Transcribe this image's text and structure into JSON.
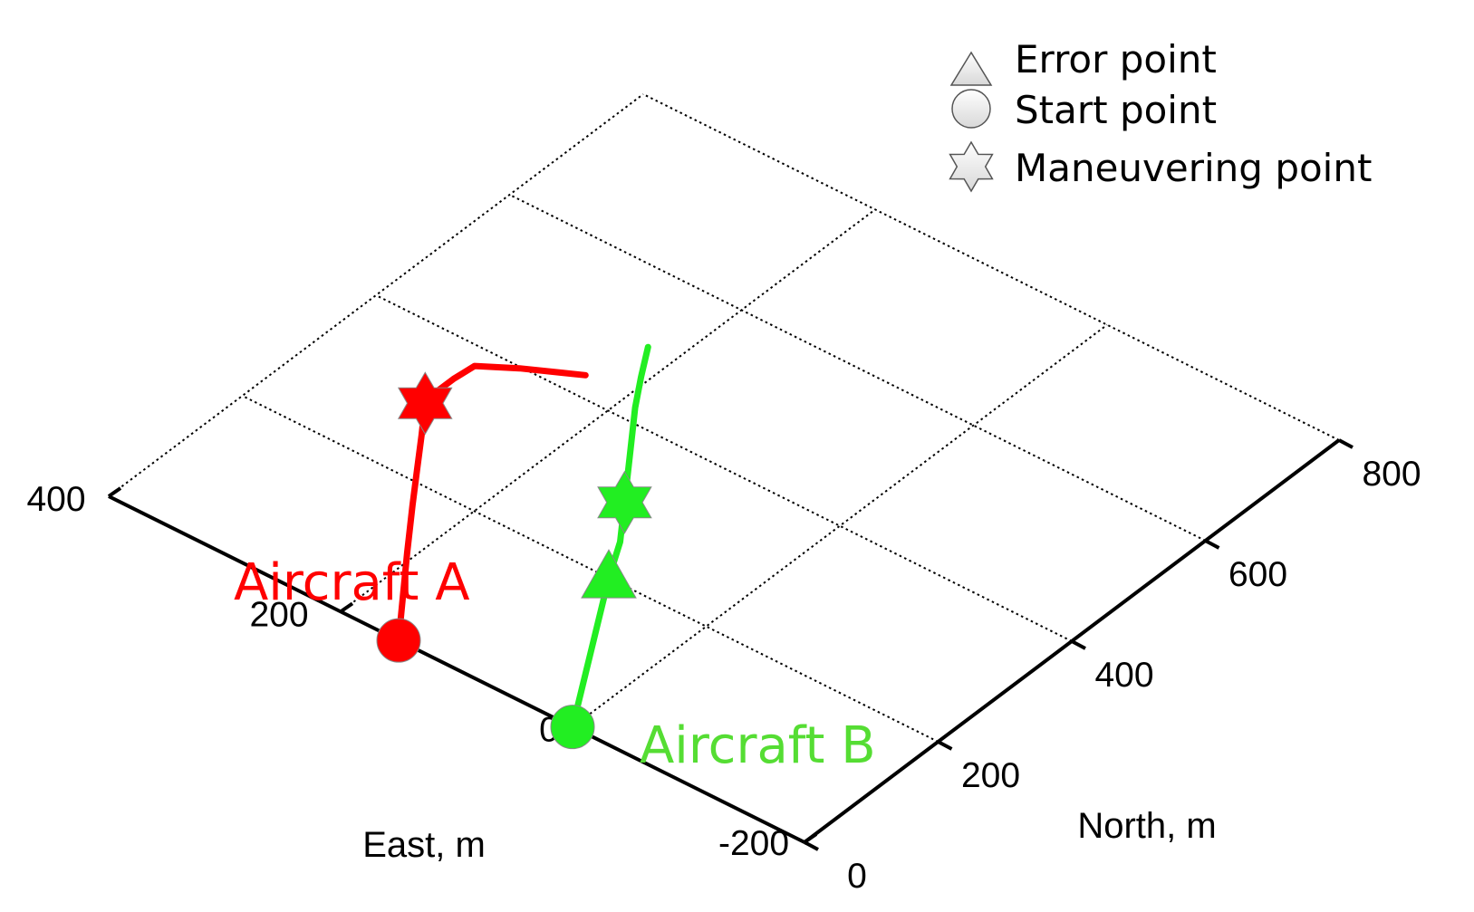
{
  "chart_data": {
    "type": "line",
    "projection": "3d-oblique",
    "title": "",
    "xlabel": "East, m",
    "ylabel": "North, m",
    "x_axis": {
      "label": "East, m",
      "range": [
        -200,
        400
      ],
      "ticks": [
        -200,
        0,
        200,
        400
      ],
      "tick_labels": [
        "-200",
        "0",
        "200",
        "400"
      ]
    },
    "y_axis": {
      "label": "North, m",
      "range": [
        0,
        800
      ],
      "ticks": [
        0,
        200,
        400,
        600,
        800
      ],
      "tick_labels": [
        "0",
        "200",
        "400",
        "600",
        "800"
      ]
    },
    "grid": true,
    "legend": {
      "placement": "top-right",
      "entries": [
        {
          "label": "Error point",
          "marker": "triangle-icon"
        },
        {
          "label": "Start point",
          "marker": "circle-icon"
        },
        {
          "label": "Maneuvering point",
          "marker": "hexagram-icon"
        }
      ]
    },
    "series": [
      {
        "name": "Aircraft A",
        "color": "#ff0000",
        "points": [
          [
            150,
            0
          ],
          [
            178,
            55
          ],
          [
            206,
            110
          ],
          [
            236,
            170
          ],
          [
            258,
            215
          ],
          [
            280,
            260
          ],
          [
            300,
            300
          ],
          [
            302,
            324
          ],
          [
            302,
            346
          ],
          [
            300,
            374
          ],
          [
            275,
            398
          ],
          [
            251,
            417
          ],
          [
            236,
            429
          ]
        ],
        "start_point": [
          150,
          0
        ],
        "maneuvering_point": [
          300,
          300
        ],
        "error_point": null
      },
      {
        "name": "Aircraft B",
        "color": "#22ee22",
        "points": [
          [
            0,
            0
          ],
          [
            21,
            50
          ],
          [
            42,
            100
          ],
          [
            63,
            150
          ],
          [
            84,
            200
          ],
          [
            103,
            250
          ],
          [
            128,
            300
          ],
          [
            158,
            360
          ],
          [
            188,
            420
          ],
          [
            206,
            460
          ],
          [
            223,
            500
          ]
        ],
        "start_point": [
          0,
          0
        ],
        "maneuvering_point": [
          128,
          300
        ],
        "error_point": [
          84,
          200
        ]
      }
    ]
  }
}
